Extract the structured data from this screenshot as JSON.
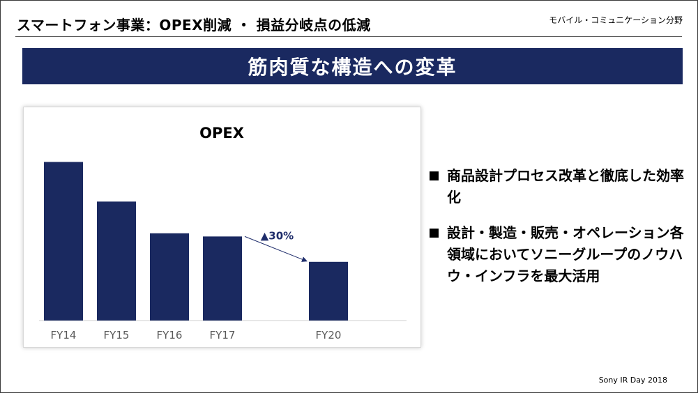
{
  "header": {
    "title": "スマートフォン事業：OPEX削減 ・ 損益分岐点の低減",
    "division": "モバイル・コミュニケーション分野"
  },
  "banner": {
    "text": "筋肉質な構造への変革"
  },
  "bullets": [
    "商品設計プロセス改革と徹底した効率化",
    "設計・製造・販売・オペレーション各領域においてソニーグループのノウハウ・インフラを最大活用"
  ],
  "footer": {
    "text": "Sony IR Day 2018"
  },
  "colors": {
    "bar": "#1a2960",
    "banner": "#1a2960",
    "annotation": "#1f2d6b"
  },
  "chart_data": {
    "type": "bar",
    "title": "OPEX",
    "categories": [
      "FY14",
      "FY15",
      "FY16",
      "FY17",
      "",
      "FY20"
    ],
    "values": [
      100,
      75,
      55,
      53,
      null,
      37
    ],
    "annotation": {
      "text": "▲30%",
      "from": "FY17",
      "to": "FY20"
    },
    "grid": false,
    "ylim": [
      0,
      105
    ]
  }
}
